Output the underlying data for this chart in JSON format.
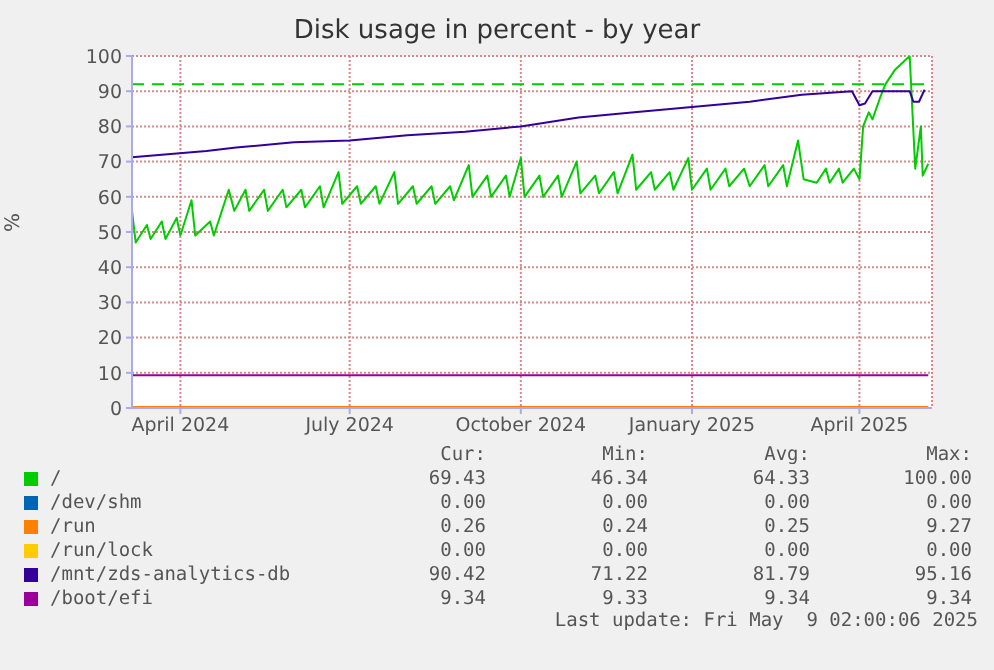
{
  "chart_data": {
    "type": "line",
    "title": "Disk usage in percent - by year",
    "ylabel": "%",
    "xlim": [
      "2024-03-06",
      "2025-05-10"
    ],
    "xticks": [
      {
        "value": "2024-04-01",
        "label": "April 2024"
      },
      {
        "value": "2024-07-01",
        "label": "July 2024"
      },
      {
        "value": "2024-10-01",
        "label": "October 2024"
      },
      {
        "value": "2025-01-01",
        "label": "January 2025"
      },
      {
        "value": "2025-04-01",
        "label": "April 2025"
      }
    ],
    "ylim": [
      0,
      100
    ],
    "yticks": [
      0,
      10,
      20,
      30,
      40,
      50,
      60,
      70,
      80,
      90,
      100
    ],
    "grid": true,
    "legend": "bottom",
    "marker": "none",
    "line_style": "solid",
    "ref_lines": [
      {
        "axis": "y",
        "value": 92,
        "color": "#00cc00",
        "line_style": "dashed"
      }
    ],
    "series": [
      {
        "name": "/",
        "color": "#00cc00",
        "x": [
          "2024-03-06",
          "2024-03-08",
          "2024-03-14",
          "2024-03-16",
          "2024-03-22",
          "2024-03-24",
          "2024-03-30",
          "2024-04-01",
          "2024-04-07",
          "2024-04-09",
          "2024-04-17",
          "2024-04-19",
          "2024-04-27",
          "2024-04-30",
          "2024-05-06",
          "2024-05-08",
          "2024-05-16",
          "2024-05-18",
          "2024-05-26",
          "2024-05-28",
          "2024-06-05",
          "2024-06-07",
          "2024-06-15",
          "2024-06-17",
          "2024-06-25",
          "2024-06-27",
          "2024-07-05",
          "2024-07-07",
          "2024-07-15",
          "2024-07-17",
          "2024-07-25",
          "2024-07-27",
          "2024-08-04",
          "2024-08-06",
          "2024-08-14",
          "2024-08-16",
          "2024-08-24",
          "2024-08-26",
          "2024-09-03",
          "2024-09-05",
          "2024-09-13",
          "2024-09-15",
          "2024-09-23",
          "2024-09-25",
          "2024-10-01",
          "2024-10-03",
          "2024-10-11",
          "2024-10-13",
          "2024-10-21",
          "2024-10-23",
          "2024-10-31",
          "2024-11-02",
          "2024-11-10",
          "2024-11-12",
          "2024-11-20",
          "2024-11-22",
          "2024-11-30",
          "2024-12-02",
          "2024-12-10",
          "2024-12-12",
          "2024-12-20",
          "2024-12-22",
          "2024-12-30",
          "2025-01-01",
          "2025-01-09",
          "2025-01-11",
          "2025-01-19",
          "2025-01-21",
          "2025-01-29",
          "2025-02-01",
          "2025-02-09",
          "2025-02-11",
          "2025-02-19",
          "2025-02-21",
          "2025-02-27",
          "2025-03-02",
          "2025-03-09",
          "2025-03-14",
          "2025-03-16",
          "2025-03-21",
          "2025-03-23",
          "2025-03-29",
          "2025-04-01",
          "2025-04-03",
          "2025-04-06",
          "2025-04-08",
          "2025-04-12",
          "2025-04-15",
          "2025-04-20",
          "2025-04-28",
          "2025-05-01",
          "2025-05-04",
          "2025-05-05",
          "2025-05-08"
        ],
        "values": [
          56,
          47,
          52,
          48,
          53,
          48,
          54,
          49,
          59,
          49,
          53,
          49,
          62,
          56,
          62,
          56,
          62,
          56,
          62,
          57,
          62,
          57,
          63,
          57,
          67,
          58,
          63,
          58,
          63,
          58,
          67,
          58,
          63,
          58,
          63,
          58,
          63,
          59,
          69,
          60,
          66,
          60,
          66,
          60,
          71,
          60,
          66,
          60,
          66,
          60,
          70,
          61,
          66,
          61,
          67,
          61,
          72,
          62,
          67,
          62,
          67,
          62,
          71,
          62,
          68,
          62,
          68,
          63,
          68,
          63,
          69,
          63,
          69,
          63,
          76,
          65,
          64,
          68,
          64,
          68,
          64,
          68,
          65,
          80,
          84,
          82,
          88,
          92,
          96,
          100,
          68,
          80,
          66,
          69.4
        ]
      },
      {
        "name": "/dev/shm",
        "color": "#0066b3"
      },
      {
        "name": "/run",
        "color": "#ff8000",
        "x": [
          "2024-03-06",
          "2025-05-08"
        ],
        "values": [
          0.3,
          0.3
        ]
      },
      {
        "name": "/run/lock",
        "color": "#ffcc00"
      },
      {
        "name": "/mnt/zds-analytics-db",
        "color": "#330099",
        "x": [
          "2024-03-06",
          "2024-04-15",
          "2024-05-01",
          "2024-06-01",
          "2024-07-01",
          "2024-08-01",
          "2024-09-01",
          "2024-10-01",
          "2024-11-01",
          "2024-12-01",
          "2025-01-01",
          "2025-02-01",
          "2025-03-01",
          "2025-03-28",
          "2025-04-01",
          "2025-04-04",
          "2025-04-08",
          "2025-04-28",
          "2025-04-30",
          "2025-05-03",
          "2025-05-06"
        ],
        "values": [
          71.2,
          73,
          74,
          75.5,
          76,
          77.5,
          78.5,
          80,
          82.5,
          84,
          85.5,
          87,
          89,
          90,
          86,
          86.5,
          90,
          90,
          87,
          87,
          90.4
        ]
      },
      {
        "name": "/boot/efi",
        "color": "#990099",
        "x": [
          "2024-03-06",
          "2025-05-08"
        ],
        "values": [
          9.3,
          9.3
        ]
      }
    ],
    "annotations": [
      "Cur:",
      "Min:",
      "Avg:",
      "Max:",
      "69.43",
      "46.34",
      "64.33",
      "100.00",
      "0.00",
      "0.00",
      "0.00",
      "0.00",
      "0.26",
      "0.24",
      "0.25",
      "9.27",
      "0.00",
      "0.00",
      "0.00",
      "0.00",
      "90.42",
      "71.22",
      "81.79",
      "95.16",
      "9.34",
      "9.33",
      "9.34",
      "9.34",
      "Last update: Fri May  9 02:00:06 2025"
    ]
  }
}
